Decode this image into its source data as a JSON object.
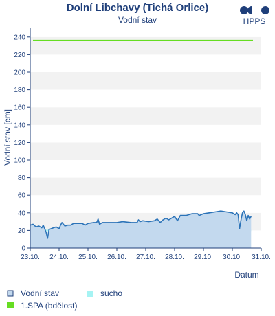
{
  "chart_data": {
    "type": "line",
    "title": "Dolní Libchavy (Tichá Orlice)",
    "subtitle": "Vodní stav",
    "ylabel": "Vodní stav [cm]",
    "xlabel": "Datum",
    "ylim": [
      0,
      250
    ],
    "yticks": [
      0,
      20,
      40,
      60,
      80,
      100,
      120,
      140,
      160,
      180,
      200,
      220,
      240
    ],
    "xlim": [
      "23.10.",
      "31.10."
    ],
    "xticks": [
      "23.10.",
      "24.10.",
      "25.10.",
      "26.10.",
      "27.10.",
      "28.10.",
      "29.10.",
      "30.10.",
      "31.10."
    ],
    "grid": "horizontal alternating bands",
    "series": [
      {
        "name": "Vodní stav",
        "color": "#2b73b8",
        "fill": "#c3d9ee",
        "points": [
          [
            0.0,
            26
          ],
          [
            0.1,
            27
          ],
          [
            0.2,
            24
          ],
          [
            0.3,
            25
          ],
          [
            0.4,
            23
          ],
          [
            0.45,
            26
          ],
          [
            0.5,
            22
          ],
          [
            0.55,
            18
          ],
          [
            0.6,
            11
          ],
          [
            0.65,
            21
          ],
          [
            0.8,
            23
          ],
          [
            0.9,
            24
          ],
          [
            1.0,
            22
          ],
          [
            1.05,
            26
          ],
          [
            1.1,
            29
          ],
          [
            1.15,
            27
          ],
          [
            1.2,
            25
          ],
          [
            1.3,
            26
          ],
          [
            1.4,
            26
          ],
          [
            1.5,
            28
          ],
          [
            1.7,
            28
          ],
          [
            1.8,
            28
          ],
          [
            1.9,
            26
          ],
          [
            2.0,
            28
          ],
          [
            2.2,
            29
          ],
          [
            2.3,
            29
          ],
          [
            2.35,
            33
          ],
          [
            2.4,
            27
          ],
          [
            2.5,
            29
          ],
          [
            2.8,
            29
          ],
          [
            3.0,
            29
          ],
          [
            3.2,
            30
          ],
          [
            3.5,
            29
          ],
          [
            3.7,
            29
          ],
          [
            3.75,
            32
          ],
          [
            3.8,
            30
          ],
          [
            3.9,
            31
          ],
          [
            4.1,
            30
          ],
          [
            4.3,
            31
          ],
          [
            4.4,
            33
          ],
          [
            4.5,
            29
          ],
          [
            4.6,
            32
          ],
          [
            4.7,
            34
          ],
          [
            4.8,
            32
          ],
          [
            5.0,
            36
          ],
          [
            5.1,
            31
          ],
          [
            5.2,
            37
          ],
          [
            5.4,
            37
          ],
          [
            5.6,
            39
          ],
          [
            5.8,
            39
          ],
          [
            5.85,
            37
          ],
          [
            6.0,
            39
          ],
          [
            6.2,
            40
          ],
          [
            6.4,
            41
          ],
          [
            6.6,
            42
          ],
          [
            6.8,
            41
          ],
          [
            7.0,
            40
          ],
          [
            7.1,
            38
          ],
          [
            7.15,
            40
          ],
          [
            7.2,
            38
          ],
          [
            7.25,
            22
          ],
          [
            7.3,
            32
          ],
          [
            7.35,
            40
          ],
          [
            7.4,
            42
          ],
          [
            7.45,
            38
          ],
          [
            7.5,
            31
          ],
          [
            7.55,
            37
          ],
          [
            7.6,
            33
          ],
          [
            7.65,
            36
          ]
        ]
      },
      {
        "name": "sucho",
        "color": "#a6f3f3",
        "value": 20
      },
      {
        "name": "1.SPA (bdělost)",
        "color": "#66dd22",
        "value": 236
      }
    ],
    "legend": "bottom-left"
  },
  "logo": {
    "text": "HPPS"
  }
}
